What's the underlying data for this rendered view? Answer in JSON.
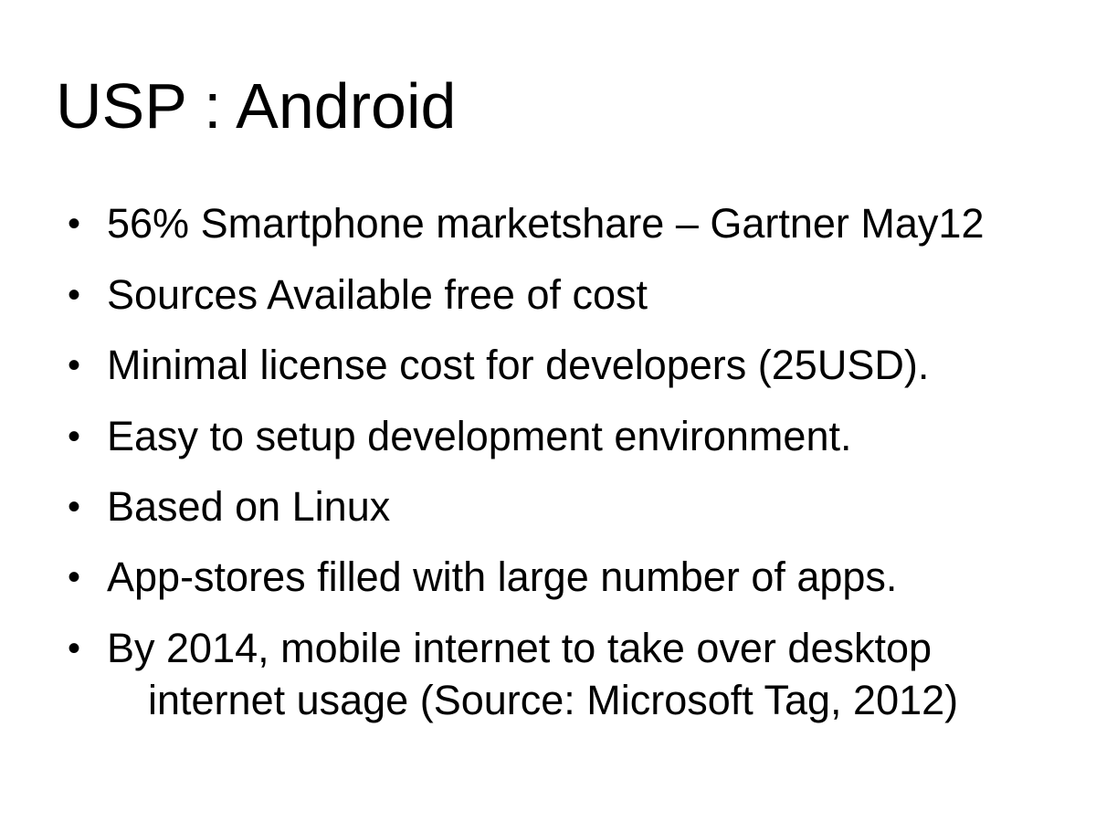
{
  "slide": {
    "title": "USP : Android",
    "bullet_glyph": "•",
    "bullets": [
      {
        "text": "56% Smartphone marketshare – Gartner May12"
      },
      {
        "text": "Sources Available free of cost"
      },
      {
        "text": "Minimal license cost for developers (25USD)."
      },
      {
        "text": "Easy to setup development environment."
      },
      {
        "text": "Based on Linux"
      },
      {
        "text": "App-stores filled with large number of apps."
      },
      {
        "text": "By 2014, mobile internet to take over desktop",
        "continuation": "internet usage (Source: Microsoft Tag, 2012)"
      }
    ]
  }
}
